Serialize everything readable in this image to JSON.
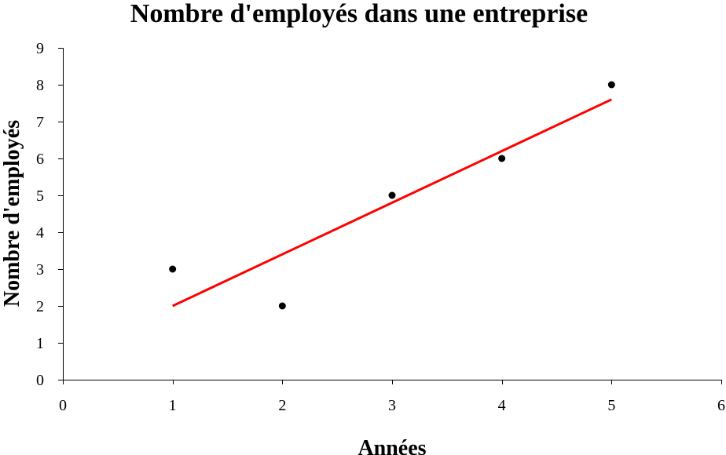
{
  "chart_data": {
    "type": "scatter",
    "title": "Nombre d'employés dans une entreprise",
    "xlabel": "Années",
    "ylabel": "Nombre d'employés",
    "xlim": [
      0,
      6
    ],
    "ylim": [
      0,
      9
    ],
    "x_ticks": [
      0,
      1,
      2,
      3,
      4,
      5,
      6
    ],
    "y_ticks": [
      0,
      1,
      2,
      3,
      4,
      5,
      6,
      7,
      8,
      9
    ],
    "grid": false,
    "legend": "none",
    "series": [
      {
        "kind": "points",
        "color": "#000000",
        "x": [
          1,
          2,
          3,
          4,
          5
        ],
        "y": [
          3,
          2,
          5,
          6,
          8
        ]
      },
      {
        "kind": "trendline",
        "color": "#ff0000",
        "x": [
          1,
          5
        ],
        "y": [
          2.0,
          7.6
        ]
      }
    ]
  }
}
